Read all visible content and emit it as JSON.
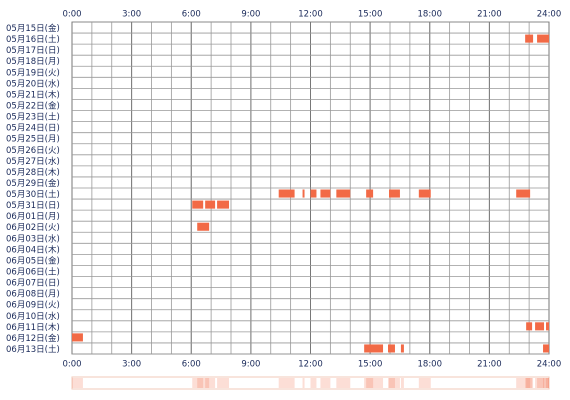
{
  "chart_data": {
    "type": "timeline",
    "color": "#f26a46",
    "xlim": [
      0,
      24
    ],
    "xticks": [
      {
        "value": 0,
        "label": "0:00"
      },
      {
        "value": 3,
        "label": "3:00"
      },
      {
        "value": 6,
        "label": "6:00"
      },
      {
        "value": 9,
        "label": "9:00"
      },
      {
        "value": 12,
        "label": "12:00"
      },
      {
        "value": 15,
        "label": "15:00"
      },
      {
        "value": 18,
        "label": "18:00"
      },
      {
        "value": 21,
        "label": "21:00"
      },
      {
        "value": 24,
        "label": "24:00"
      }
    ],
    "categories": [
      "05月15日(金)",
      "05月16日(土)",
      "05月17日(日)",
      "05月18日(月)",
      "05月19日(火)",
      "05月20日(水)",
      "05月21日(木)",
      "05月22日(金)",
      "05月23日(土)",
      "05月24日(日)",
      "05月25日(月)",
      "05月26日(火)",
      "05月27日(水)",
      "05月28日(木)",
      "05月29日(金)",
      "05月30日(土)",
      "05月31日(日)",
      "06月01日(月)",
      "06月02日(火)",
      "06月03日(水)",
      "06月04日(木)",
      "06月05日(金)",
      "06月06日(土)",
      "06月07日(日)",
      "06月08日(月)",
      "06月09日(火)",
      "06月10日(水)",
      "06月11日(木)",
      "06月12日(金)",
      "06月13日(土)"
    ],
    "intervals": [
      [],
      [
        [
          22.8,
          23.2
        ],
        [
          23.4,
          24
        ]
      ],
      [],
      [],
      [],
      [],
      [],
      [],
      [],
      [],
      [],
      [],
      [],
      [],
      [],
      [
        [
          10.4,
          11.2
        ],
        [
          11.6,
          11.7
        ],
        [
          12.0,
          12.3
        ],
        [
          12.5,
          13.0
        ],
        [
          13.3,
          14.0
        ],
        [
          14.8,
          15.15
        ],
        [
          15.95,
          16.5
        ],
        [
          17.45,
          18.05
        ],
        [
          22.35,
          23.05
        ]
      ],
      [
        [
          6.05,
          6.6
        ],
        [
          6.7,
          7.2
        ],
        [
          7.3,
          7.9
        ]
      ],
      [],
      [
        [
          6.3,
          6.9
        ]
      ],
      [],
      [],
      [],
      [],
      [],
      [],
      [],
      [],
      [
        [
          22.85,
          23.15
        ],
        [
          23.3,
          23.75
        ],
        [
          23.85,
          24
        ]
      ],
      [
        [
          0,
          0.55
        ]
      ],
      [
        [
          14.7,
          15.65
        ],
        [
          15.9,
          16.25
        ],
        [
          16.55,
          16.7
        ],
        [
          23.7,
          24
        ]
      ]
    ]
  }
}
